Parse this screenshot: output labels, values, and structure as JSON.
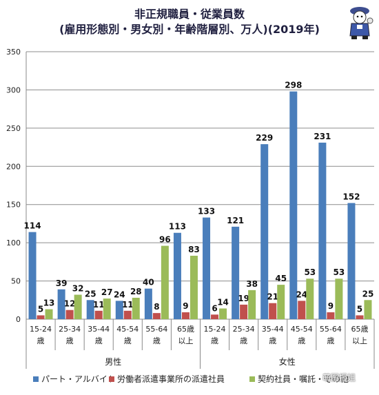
{
  "chart_data": {
    "type": "bar",
    "title_lines": [
      "非正規職員・従業員数",
      "(雇用形態別・男女別・年齢階層別、万人)(2019年)"
    ],
    "ylim": [
      0,
      350
    ],
    "yticks": [
      "0",
      "50",
      "100",
      "150",
      "200",
      "250",
      "300",
      "350"
    ],
    "grid": true,
    "groups": [
      {
        "name": "男性",
        "categories": [
          "15-24\n歳",
          "25-34\n歳",
          "35-44\n歳",
          "45-54\n歳",
          "55-64\n歳",
          "65歳\n以上"
        ]
      },
      {
        "name": "女性",
        "categories": [
          "15-24\n歳",
          "25-34\n歳",
          "35-44\n歳",
          "45-54\n歳",
          "55-64\n歳",
          "65歳\n以上"
        ]
      }
    ],
    "series": [
      {
        "name": "パート・アルバイト",
        "color": "#4a7ebb",
        "values": [
          114,
          39,
          25,
          24,
          40,
          113,
          133,
          121,
          229,
          298,
          231,
          152
        ]
      },
      {
        "name": "労働者派遣事業所の派遣社員",
        "color": "#c0504d",
        "values": [
          5,
          12,
          11,
          11,
          8,
          9,
          6,
          19,
          21,
          24,
          9,
          5
        ]
      },
      {
        "name": "契約社員・嘱託・その他",
        "color": "#9bbb59",
        "values": [
          13,
          32,
          27,
          28,
          96,
          83,
          14,
          38,
          45,
          53,
          53,
          25
        ]
      }
    ],
    "labels": {
      "0": [
        "114",
        "5",
        "13"
      ],
      "1": [
        "39",
        "12",
        "32"
      ],
      "2": [
        "25",
        "11",
        "27"
      ],
      "3": [
        "24",
        "11",
        "28"
      ],
      "4": [
        "40",
        "8",
        "96"
      ],
      "5": [
        "113",
        "9",
        "83"
      ],
      "6": [
        "133",
        "6",
        "14"
      ],
      "7": [
        "121",
        "19",
        "38"
      ],
      "8": [
        "229",
        "21",
        "45"
      ],
      "9": [
        "298",
        "24",
        "53"
      ],
      "10": [
        "231",
        "9",
        "53"
      ],
      "11": [
        "152",
        "5",
        "25"
      ]
    }
  },
  "legend": {
    "item1": "パート・アルバイト",
    "item2": "労働者派遣事業所の派遣社員",
    "item3": "契約社員・嘱託・その他"
  },
  "watermark": "萌图报姐",
  "colors": {
    "blue": "#4a7ebb",
    "red": "#c0504d",
    "green": "#9bbb59"
  }
}
